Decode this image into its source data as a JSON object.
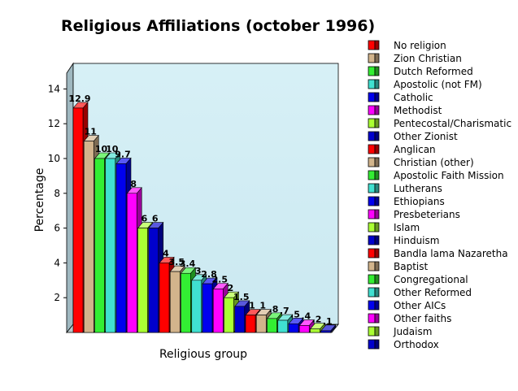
{
  "chart_data": {
    "type": "bar",
    "title": "Religious Affiliations (october 1996)",
    "xlabel": "Religious group",
    "ylabel": "Percentage",
    "ylim": [
      0,
      15
    ],
    "yticks": [
      2,
      4,
      6,
      8,
      10,
      12,
      14
    ],
    "grid": false,
    "three_d": true,
    "legend_position": "right",
    "categories": [
      "No religion",
      "Zion Christian",
      "Dutch Reformed",
      "Apostolic (not FM)",
      "Catholic",
      "Methodist",
      "Pentecostal/Charismatic",
      "Other Zionist",
      "Anglican",
      "Christian (other)",
      "Apostolic Faith Mission",
      "Lutherans",
      "Ethiopians",
      "Presbeterians",
      "Islam",
      "Hinduism",
      "Bandla lama Nazaretha",
      "Baptist",
      "Congregational",
      "Other Reformed",
      "Other AICs",
      "Other faiths",
      "Judaism",
      "Orthodox"
    ],
    "values": [
      12.9,
      11,
      10,
      10,
      9.7,
      8,
      6,
      6,
      4,
      3.5,
      3.4,
      3,
      2.8,
      2.5,
      2,
      1.5,
      1,
      1,
      0.8,
      0.7,
      0.5,
      0.4,
      0.2,
      0.1
    ],
    "data_labels": [
      "12.9",
      "11",
      "10",
      "10",
      "9.7",
      "8",
      "6",
      "6",
      "4",
      "3.5",
      "3.4",
      "3",
      "2.8",
      "2.5",
      "2",
      "1.5",
      "1",
      "1",
      ".8",
      ".7",
      ".5",
      ".4",
      ".2",
      ".1"
    ],
    "colors": [
      "#ff0000",
      "#d2b48c",
      "#33ee33",
      "#40e0d0",
      "#0000ee",
      "#ff00ff",
      "#aaff33",
      "#0000cc"
    ],
    "background_color": "#d4eef5"
  }
}
